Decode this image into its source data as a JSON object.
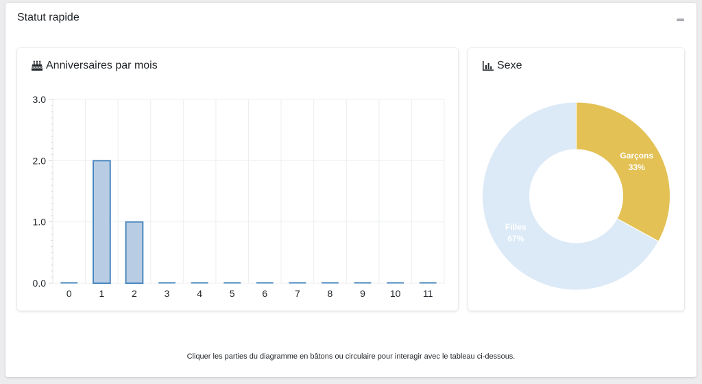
{
  "panel": {
    "title": "Statut rapide",
    "footnote": "Cliquer les parties du diagramme en bâtons ou circulaire pour interagir avec le tableau ci-dessous."
  },
  "birthdays_card": {
    "title": "Anniversaires par mois",
    "icon": "birthday-cake-icon"
  },
  "gender_card": {
    "title": "Sexe",
    "icon": "bar-chart-icon"
  },
  "colors": {
    "bar_fill": "#b8cde3",
    "bar_stroke": "#4a86bf",
    "boys": "#e3c155",
    "girls": "#dceaf7"
  },
  "chart_data": [
    {
      "type": "bar",
      "categories": [
        "0",
        "1",
        "2",
        "3",
        "4",
        "5",
        "6",
        "7",
        "8",
        "9",
        "10",
        "11"
      ],
      "values": [
        0,
        2,
        1,
        0,
        0,
        0,
        0,
        0,
        0,
        0,
        0,
        0
      ],
      "ylim": [
        0,
        3
      ],
      "yticks": [
        "3.0",
        "2.0",
        "1.0",
        "0.0"
      ],
      "grid": true
    },
    {
      "type": "pie",
      "slices": [
        {
          "label": "Garçons",
          "value": 33,
          "display": "33%"
        },
        {
          "label": "Filles",
          "value": 67,
          "display": "67%"
        }
      ]
    }
  ]
}
